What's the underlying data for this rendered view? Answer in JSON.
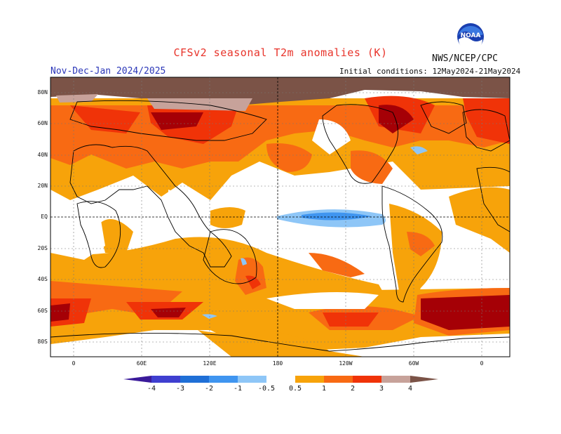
{
  "header": {
    "title": "CFSv2 seasonal T2m anomalies (K)",
    "agency": "NWS/NCEP/CPC",
    "period": "Nov-Dec-Jan 2024/2025",
    "initial_conditions": "Initial conditions: 12May2024-21May2024",
    "logo_text": "NOAA"
  },
  "map": {
    "lat_labels": [
      "80N",
      "60N",
      "40N",
      "20N",
      "EQ",
      "20S",
      "40S",
      "60S",
      "80S"
    ],
    "lon_labels": [
      "0",
      "60E",
      "120E",
      "180",
      "120W",
      "60W",
      "0"
    ]
  },
  "colorbar": {
    "labels": [
      "-4",
      "-3",
      "-2",
      "-1",
      "-0.5",
      "0.5",
      "1",
      "2",
      "3",
      "4"
    ],
    "colors": {
      "neg4": "#3a1a9a",
      "neg3": "#3f3fd0",
      "neg2": "#1f6fd6",
      "neg1": "#3f95f0",
      "neg05": "#8ec6f7",
      "white": "#ffffff",
      "pos05": "#f7a30a",
      "pos1": "#f86a13",
      "pos2": "#f03308",
      "pos3": "#a50006",
      "pos4": "#c7a29a",
      "pos5": "#7b5347"
    }
  }
}
